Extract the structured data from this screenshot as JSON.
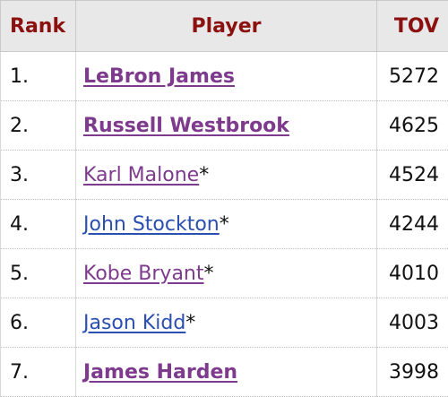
{
  "header": {
    "rank": "Rank",
    "player": "Player",
    "tov": "TOV"
  },
  "rows": [
    {
      "rank": "1.",
      "player": "LeBron James",
      "suffix": "",
      "tov": "5272"
    },
    {
      "rank": "2.",
      "player": "Russell Westbrook",
      "suffix": "",
      "tov": "4625"
    },
    {
      "rank": "3.",
      "player": "Karl Malone",
      "suffix": "*",
      "tov": "4524"
    },
    {
      "rank": "4.",
      "player": "John Stockton",
      "suffix": "*",
      "tov": "4244"
    },
    {
      "rank": "5.",
      "player": "Kobe Bryant",
      "suffix": "*",
      "tov": "4010"
    },
    {
      "rank": "6.",
      "player": "Jason Kidd",
      "suffix": "*",
      "tov": "4003"
    },
    {
      "rank": "7.",
      "player": "James Harden",
      "suffix": "",
      "tov": "3998"
    }
  ],
  "colors": {
    "header_text": "#8b1111",
    "header_bg": "#e8e8e8",
    "link_visited": "#7e3a8c",
    "link_unvisited": "#2a4fb0"
  }
}
